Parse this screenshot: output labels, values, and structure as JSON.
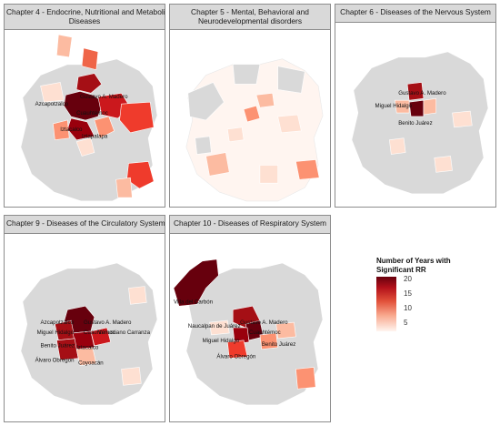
{
  "panels": [
    {
      "title_line1": "Chapter 4 - Endocrine, Nutritional and Metabolic",
      "title_line2": "Diseases",
      "labels": [
        "Gustavo A. Madero",
        "Azcapotzalco",
        "Cuauhtémoc",
        "Iztacalco",
        "Iztapalapa"
      ]
    },
    {
      "title_line1": "Chapter 5 - Mental, Behavioral and",
      "title_line2": "Neurodevelopmental disorders",
      "labels": []
    },
    {
      "title_line1": "Chapter 6 - Diseases of the Nervous System",
      "title_line2": "",
      "labels": [
        "Gustavo A. Madero",
        "Miguel Hidalgo",
        "Benito Juárez"
      ]
    },
    {
      "title_line1": "Chapter 9 - Diseases of the Circulatory System",
      "title_line2": "",
      "labels": [
        "Azcapotzalco",
        "Gustavo A. Madero",
        "Miguel Hidalgo",
        "Cuauhtémoc",
        "Venustiano Carranza",
        "Benito Juárez",
        "Iztacalco",
        "Álvaro Obregón",
        "Coyoacán"
      ]
    },
    {
      "title_line1": "Chapter 10 - Diseases of Respiratory System",
      "title_line2": "",
      "labels": [
        "Villa del Carbón",
        "Gustavo A. Madero",
        "Naucalpan de Juárez",
        "Cuauhtémoc",
        "Miguel Hidalgo",
        "Benito Juárez",
        "Álvaro Obregón"
      ]
    }
  ],
  "legend": {
    "title_line1": "Number of Years with",
    "title_line2": "Significant RR",
    "ticks": [
      "20",
      "15",
      "10",
      "5"
    ],
    "tick_values": [
      20,
      15,
      10,
      5
    ],
    "range": [
      1,
      20
    ]
  },
  "colors": {
    "no_data": "#d9d9d9",
    "low": "#fff5f0",
    "mid": "#f8a68b",
    "high": "#e2513a",
    "max": "#67000d"
  }
}
